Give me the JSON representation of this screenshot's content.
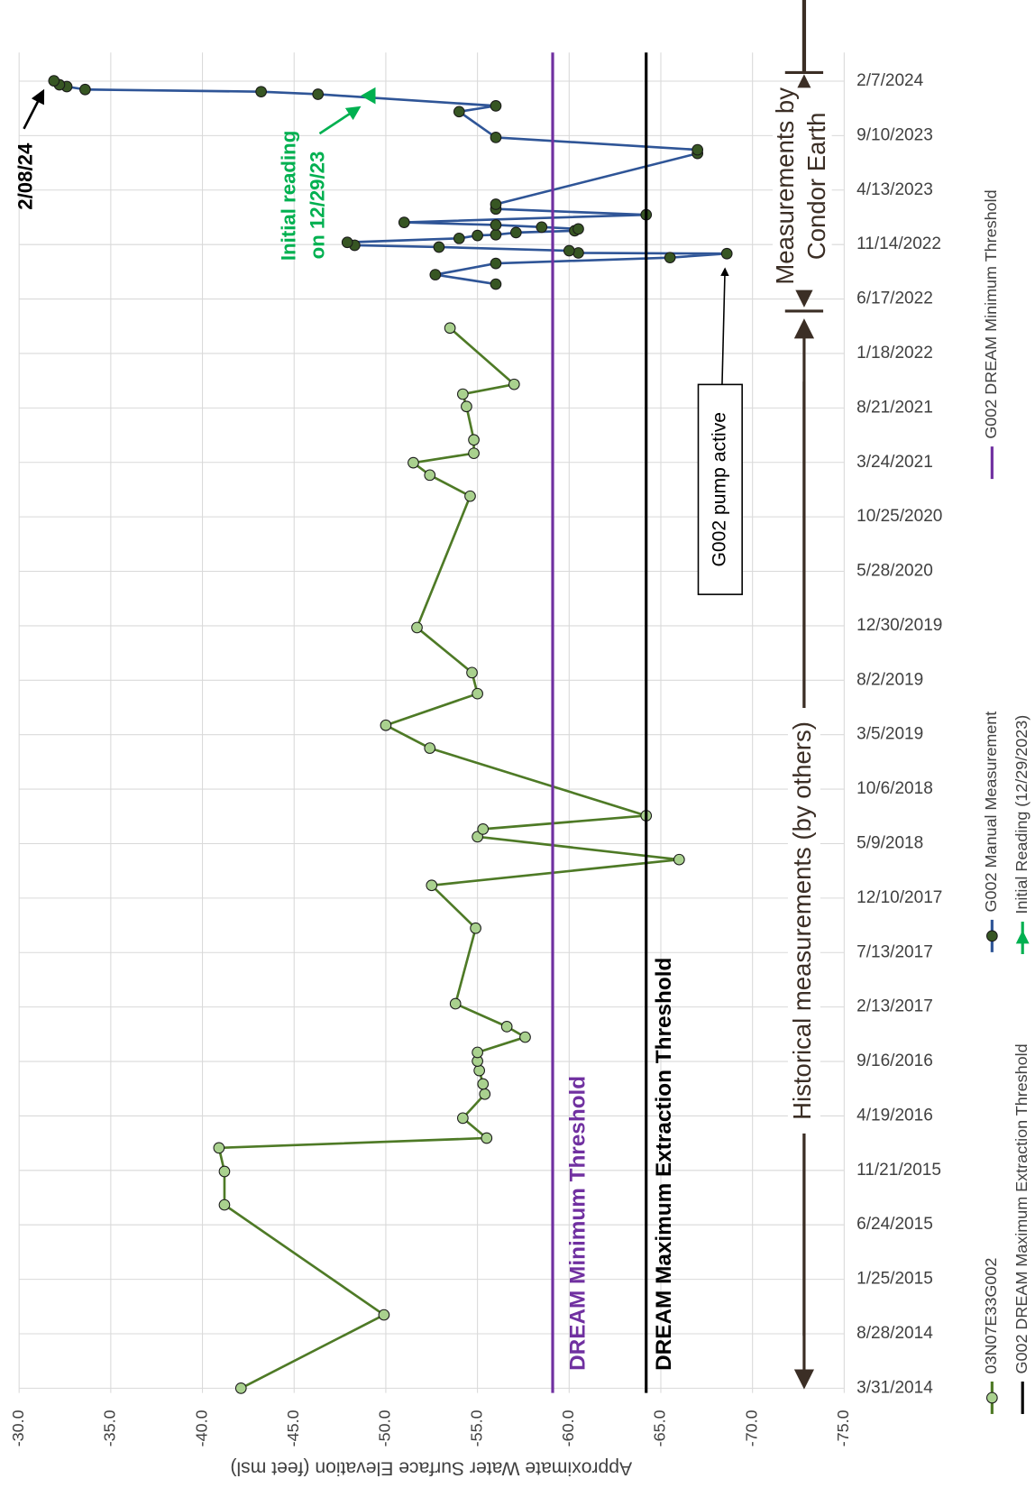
{
  "chart_data": {
    "type": "line",
    "y_label": "Approximate Water Surface Elevation (feet msl)",
    "ylim": [
      -30,
      -75
    ],
    "yticks": [
      {
        "value": -30,
        "label": "-30.0"
      },
      {
        "value": -35,
        "label": "-35.0"
      },
      {
        "value": -40,
        "label": "-40.0"
      },
      {
        "value": -45,
        "label": "-45.0"
      },
      {
        "value": -50,
        "label": "-50.0"
      },
      {
        "value": -55,
        "label": "-55.0"
      },
      {
        "value": -60,
        "label": "-60.0"
      },
      {
        "value": -65,
        "label": "-65.0"
      },
      {
        "value": -70,
        "label": "-70.0"
      },
      {
        "value": -75,
        "label": "-75.0"
      }
    ],
    "xlim": [
      "2014-03-31",
      "2024-04-26"
    ],
    "xticks": [
      {
        "value": "2014-03-31",
        "label": "3/31/2014"
      },
      {
        "value": "2014-08-28",
        "label": "8/28/2014"
      },
      {
        "value": "2015-01-25",
        "label": "1/25/2015"
      },
      {
        "value": "2015-06-24",
        "label": "6/24/2015"
      },
      {
        "value": "2015-11-21",
        "label": "11/21/2015"
      },
      {
        "value": "2016-04-19",
        "label": "4/19/2016"
      },
      {
        "value": "2016-09-16",
        "label": "9/16/2016"
      },
      {
        "value": "2017-02-13",
        "label": "2/13/2017"
      },
      {
        "value": "2017-07-13",
        "label": "7/13/2017"
      },
      {
        "value": "2017-12-10",
        "label": "12/10/2017"
      },
      {
        "value": "2018-05-09",
        "label": "5/9/2018"
      },
      {
        "value": "2018-10-06",
        "label": "10/6/2018"
      },
      {
        "value": "2019-03-05",
        "label": "3/5/2019"
      },
      {
        "value": "2019-08-02",
        "label": "8/2/2019"
      },
      {
        "value": "2019-12-30",
        "label": "12/30/2019"
      },
      {
        "value": "2020-05-28",
        "label": "5/28/2020"
      },
      {
        "value": "2020-10-25",
        "label": "10/25/2020"
      },
      {
        "value": "2021-03-24",
        "label": "3/24/2021"
      },
      {
        "value": "2021-08-21",
        "label": "8/21/2021"
      },
      {
        "value": "2022-01-18",
        "label": "1/18/2022"
      },
      {
        "value": "2022-06-17",
        "label": "6/17/2022"
      },
      {
        "value": "2022-11-14",
        "label": "11/14/2022"
      },
      {
        "value": "2023-04-13",
        "label": "4/13/2023"
      },
      {
        "value": "2023-09-10",
        "label": "9/10/2023"
      },
      {
        "value": "2024-02-07",
        "label": "2/7/2024"
      }
    ],
    "grid": true,
    "legend": "right",
    "series": [
      {
        "name": "03N07E33G002",
        "color": "#4e7a26",
        "marker": "circle",
        "marker_fill": "#a9d18e",
        "x": [
          "2014-03-31",
          "2014-10-19",
          "2015-08-18",
          "2015-11-18",
          "2016-01-22",
          "2016-02-18",
          "2016-04-13",
          "2016-06-18",
          "2016-07-16",
          "2016-08-22",
          "2016-09-17",
          "2016-10-11",
          "2016-11-22",
          "2016-12-21",
          "2017-02-22",
          "2017-09-18",
          "2018-01-14",
          "2018-03-26",
          "2018-05-28",
          "2018-06-18",
          "2018-07-25",
          "2019-01-27",
          "2019-03-31",
          "2019-06-26",
          "2019-08-23",
          "2019-12-25",
          "2020-12-21",
          "2021-02-17",
          "2021-03-23",
          "2021-04-18",
          "2021-05-25",
          "2021-08-25",
          "2021-09-28",
          "2021-10-25",
          "2022-03-29"
        ],
        "values": [
          -42.1,
          -49.9,
          -41.2,
          -41.2,
          -40.9,
          -55.5,
          -54.2,
          -55.4,
          -55.3,
          -55.1,
          -55.0,
          -55.0,
          -57.6,
          -56.6,
          -53.8,
          -54.9,
          -52.5,
          -66.0,
          -55.0,
          -55.3,
          -64.2,
          -52.4,
          -50.0,
          -55.0,
          -54.7,
          -51.7,
          -54.6,
          -52.4,
          -51.5,
          -54.8,
          -54.8,
          -54.4,
          -54.2,
          -57.0,
          -53.5
        ]
      },
      {
        "name": "G002 Manual Measurement",
        "color": "#2f5597",
        "marker": "circle",
        "marker_fill": "#375623",
        "x": [
          "2022-07-28",
          "2022-08-23",
          "2022-09-23",
          "2022-10-09",
          "2022-10-20",
          "2022-10-22",
          "2022-10-28",
          "2022-11-07",
          "2022-11-12",
          "2022-11-20",
          "2022-12-01",
          "2022-12-09",
          "2022-12-11",
          "2022-12-17",
          "2022-12-22",
          "2022-12-27",
          "2023-01-01",
          "2023-01-07",
          "2023-01-14",
          "2023-02-04",
          "2023-02-20",
          "2023-03-05",
          "2023-07-23",
          "2023-08-02",
          "2023-09-05",
          "2023-11-15",
          "2023-12-01",
          "2024-01-02",
          "2024-01-09",
          "2024-01-15",
          "2024-01-23",
          "2024-01-28",
          "2024-02-08"
        ],
        "values": [
          -56.0,
          -52.7,
          -56.0,
          -65.5,
          -68.6,
          -60.5,
          -60.0,
          -52.9,
          -48.3,
          -47.9,
          -54.0,
          -55.0,
          -56.0,
          -57.1,
          -60.3,
          -60.5,
          -58.5,
          -56.0,
          -51.0,
          -64.2,
          -56.0,
          -56.0,
          -67.0,
          -67.0,
          -56.0,
          -54.0,
          -56.0,
          -46.3,
          -43.2,
          -33.6,
          -32.6,
          -32.2,
          -31.9
        ]
      },
      {
        "name": "G002 DREAM Minimum Threshold",
        "color": "#7030a0",
        "marker": "none",
        "kind": "hline",
        "values": [
          -59.1
        ]
      },
      {
        "name": "G002 DREAM Maximum Extraction Threshold",
        "color": "#000000",
        "marker": "none",
        "kind": "hline",
        "values": [
          -64.2
        ]
      },
      {
        "name": "Initial Reading (12/29/2023)",
        "color": "#00b050",
        "marker": "triangle",
        "marker_fill": "#00b050",
        "x": [
          "2023-12-29"
        ],
        "values": [
          -49.1
        ]
      }
    ],
    "annotations": {
      "min_threshold": "DREAM Minimum Threshold",
      "max_threshold": "DREAM Maximum Extraction Threshold",
      "historical": "Historical measurements (by others)",
      "condor": [
        "Measurements by",
        "Condor Earth"
      ],
      "pump": "G002 pump active",
      "latest": "2/08/24",
      "initial": [
        "Initial reading",
        "on 12/29/23"
      ]
    }
  }
}
